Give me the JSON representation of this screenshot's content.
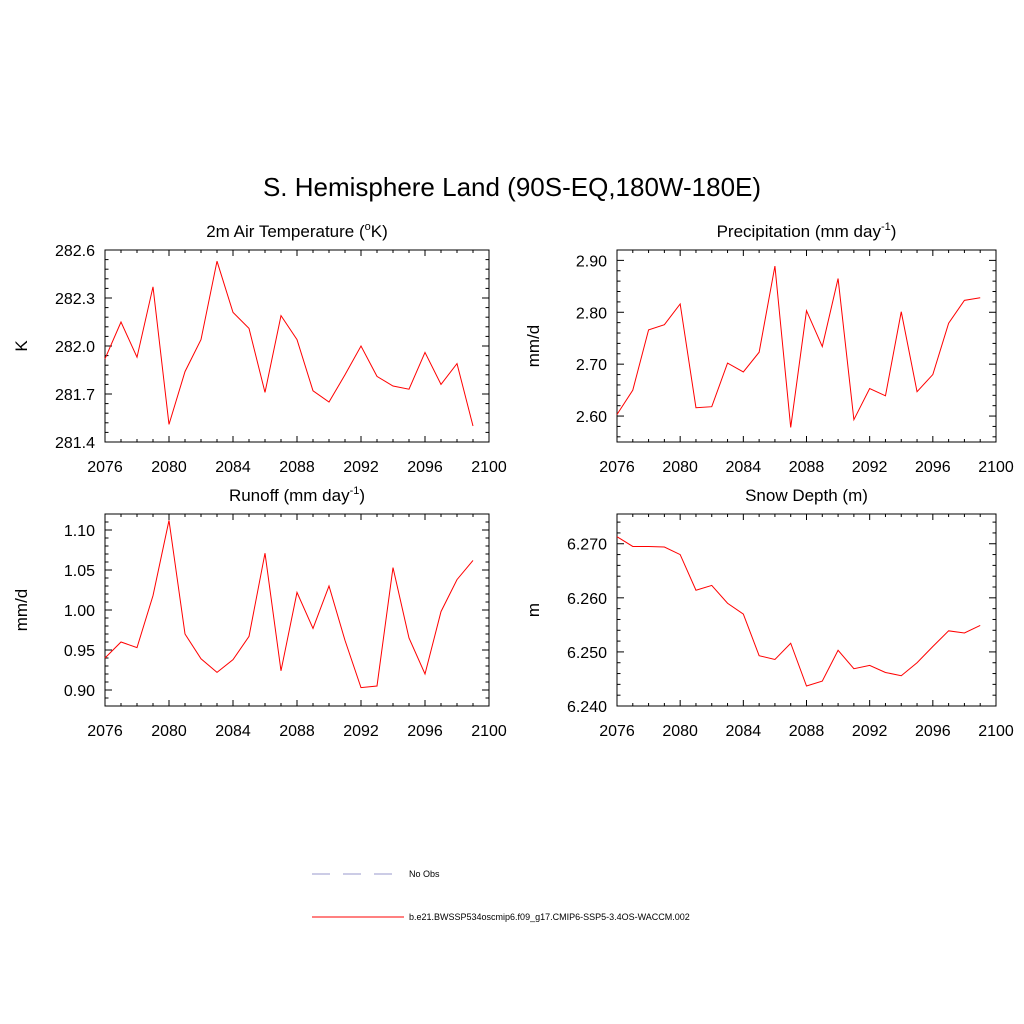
{
  "figure": {
    "title": "S. Hemisphere Land (90S-EQ,180W-180E)"
  },
  "legend": [
    {
      "label": "No Obs",
      "color": "#9999cc",
      "style": "dashed"
    },
    {
      "label": "b.e21.BWSSP534oscmip6.f09_g17.CMIP6-SSP5-3.4OS-WACCM.002",
      "color": "#ff0000",
      "style": "solid"
    }
  ],
  "chart_data": [
    {
      "type": "line",
      "title_parts": [
        "2m Air Temperature (",
        "o",
        "K)"
      ],
      "ylabel": "K",
      "xlim": [
        2076,
        2100
      ],
      "ylim": [
        281.4,
        282.6
      ],
      "xticks": [
        2076,
        2080,
        2084,
        2088,
        2092,
        2096,
        2100
      ],
      "yticks": [
        281.4,
        281.7,
        282.0,
        282.3,
        282.6
      ],
      "ytick_labels": [
        "281.4",
        "281.7",
        "282.0",
        "282.3",
        "282.6"
      ],
      "x": [
        2076,
        2077,
        2078,
        2079,
        2080,
        2081,
        2082,
        2083,
        2084,
        2085,
        2086,
        2087,
        2088,
        2089,
        2090,
        2091,
        2092,
        2093,
        2094,
        2095,
        2096,
        2097,
        2098,
        2099
      ],
      "series": [
        {
          "name": "b.e21.BWSSP534oscmip6.f09_g17.CMIP6-SSP5-3.4OS-WACCM.002",
          "color": "#ff0000",
          "values": [
            281.92,
            282.15,
            281.93,
            282.37,
            281.51,
            281.84,
            282.04,
            282.53,
            282.21,
            282.11,
            281.71,
            282.19,
            282.04,
            281.72,
            281.65,
            281.82,
            282.0,
            281.81,
            281.75,
            281.73,
            281.96,
            281.76,
            281.89,
            281.5
          ]
        }
      ]
    },
    {
      "type": "line",
      "title_parts": [
        "Precipitation (mm day",
        "-1",
        ")"
      ],
      "ylabel": "mm/d",
      "xlim": [
        2076,
        2100
      ],
      "ylim": [
        2.55,
        2.92
      ],
      "xticks": [
        2076,
        2080,
        2084,
        2088,
        2092,
        2096,
        2100
      ],
      "yticks": [
        2.6,
        2.7,
        2.8,
        2.9
      ],
      "ytick_labels": [
        "2.60",
        "2.70",
        "2.80",
        "2.90"
      ],
      "x": [
        2076,
        2077,
        2078,
        2079,
        2080,
        2081,
        2082,
        2083,
        2084,
        2085,
        2086,
        2087,
        2088,
        2089,
        2090,
        2091,
        2092,
        2093,
        2094,
        2095,
        2096,
        2097,
        2098,
        2099
      ],
      "series": [
        {
          "name": "b.e21.BWSSP534oscmip6.f09_g17.CMIP6-SSP5-3.4OS-WACCM.002",
          "color": "#ff0000",
          "values": [
            2.603,
            2.65,
            2.766,
            2.776,
            2.816,
            2.616,
            2.618,
            2.702,
            2.685,
            2.723,
            2.889,
            2.578,
            2.803,
            2.734,
            2.865,
            2.593,
            2.653,
            2.639,
            2.801,
            2.647,
            2.68,
            2.779,
            2.823,
            2.828
          ]
        }
      ]
    },
    {
      "type": "line",
      "title_parts": [
        "Runoff (mm day",
        "-1",
        ")"
      ],
      "ylabel": "mm/d",
      "xlim": [
        2076,
        2100
      ],
      "ylim": [
        0.88,
        1.12
      ],
      "xticks": [
        2076,
        2080,
        2084,
        2088,
        2092,
        2096,
        2100
      ],
      "yticks": [
        0.9,
        0.95,
        1.0,
        1.05,
        1.1
      ],
      "ytick_labels": [
        "0.90",
        "0.95",
        "1.00",
        "1.05",
        "1.10"
      ],
      "x": [
        2076,
        2077,
        2078,
        2079,
        2080,
        2081,
        2082,
        2083,
        2084,
        2085,
        2086,
        2087,
        2088,
        2089,
        2090,
        2091,
        2092,
        2093,
        2094,
        2095,
        2096,
        2097,
        2098,
        2099
      ],
      "series": [
        {
          "name": "b.e21.BWSSP534oscmip6.f09_g17.CMIP6-SSP5-3.4OS-WACCM.002",
          "color": "#ff0000",
          "values": [
            0.94,
            0.96,
            0.953,
            1.018,
            1.112,
            0.97,
            0.939,
            0.922,
            0.938,
            0.967,
            1.071,
            0.924,
            1.022,
            0.977,
            1.03,
            0.962,
            0.903,
            0.905,
            1.053,
            0.965,
            0.92,
            0.998,
            1.038,
            1.062
          ]
        }
      ]
    },
    {
      "type": "line",
      "title_parts": [
        "Snow Depth (m)"
      ],
      "ylabel": "m",
      "xlim": [
        2076,
        2100
      ],
      "ylim": [
        6.24,
        6.2755
      ],
      "xticks": [
        2076,
        2080,
        2084,
        2088,
        2092,
        2096,
        2100
      ],
      "yticks": [
        6.24,
        6.25,
        6.26,
        6.27
      ],
      "ytick_labels": [
        "6.240",
        "6.250",
        "6.260",
        "6.270"
      ],
      "x": [
        2076,
        2077,
        2078,
        2079,
        2080,
        2081,
        2082,
        2083,
        2084,
        2085,
        2086,
        2087,
        2088,
        2089,
        2090,
        2091,
        2092,
        2093,
        2094,
        2095,
        2096,
        2097,
        2098,
        2099
      ],
      "series": [
        {
          "name": "b.e21.BWSSP534oscmip6.f09_g17.CMIP6-SSP5-3.4OS-WACCM.002",
          "color": "#ff0000",
          "values": [
            6.2713,
            6.2695,
            6.2695,
            6.2694,
            6.268,
            6.2614,
            6.2623,
            6.259,
            6.257,
            6.2493,
            6.2486,
            6.2516,
            6.2437,
            6.2446,
            6.2503,
            6.2469,
            6.2475,
            6.2462,
            6.2456,
            6.248,
            6.251,
            6.2539,
            6.2535,
            6.2549
          ]
        }
      ]
    }
  ]
}
